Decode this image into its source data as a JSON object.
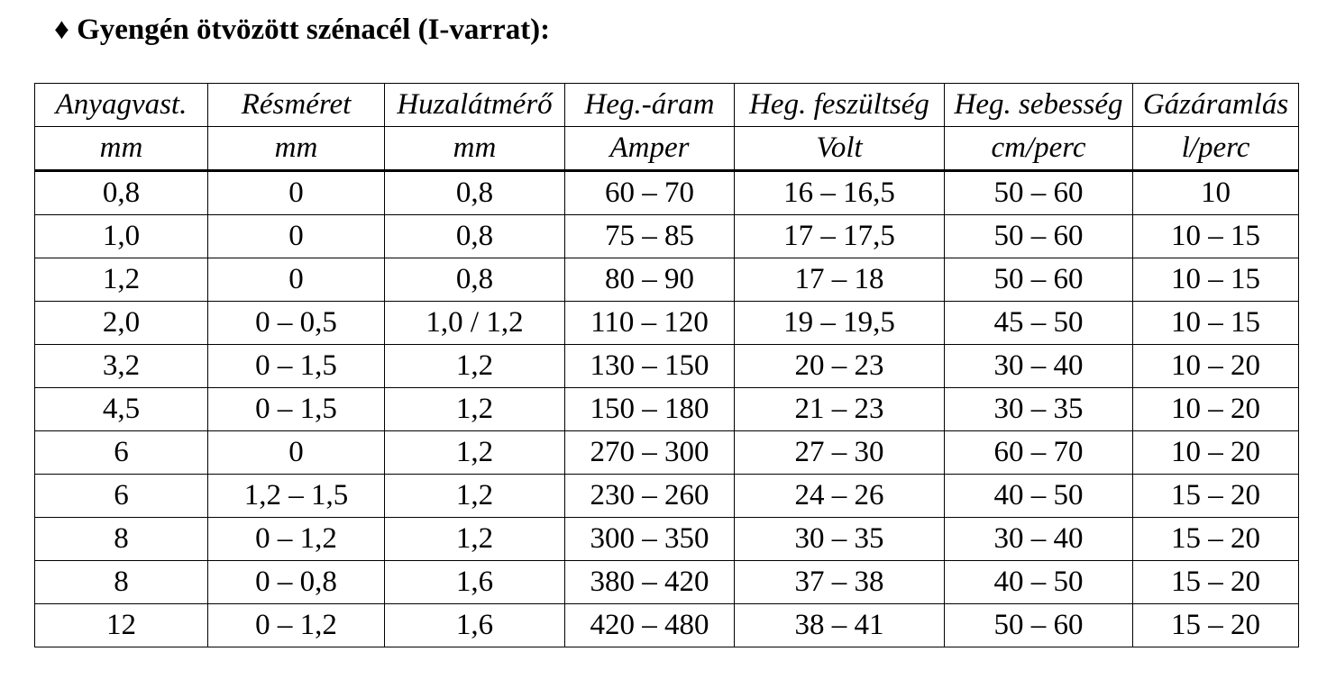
{
  "title": "♦ Gyengén ötvözött szénacél (I-varrat):",
  "table": {
    "headers": [
      "Anyagvast.",
      "Résméret",
      "Huzalátmérő",
      "Heg.-áram",
      "Heg. feszültség",
      "Heg. sebesség",
      "Gázáramlás"
    ],
    "units": [
      "mm",
      "mm",
      "mm",
      "Amper",
      "Volt",
      "cm/perc",
      "l/perc"
    ],
    "rows": [
      [
        "0,8",
        "0",
        "0,8",
        "60 – 70",
        "16 – 16,5",
        "50 – 60",
        "10"
      ],
      [
        "1,0",
        "0",
        "0,8",
        "75 – 85",
        "17 – 17,5",
        "50 – 60",
        "10 – 15"
      ],
      [
        "1,2",
        "0",
        "0,8",
        "80 – 90",
        "17 – 18",
        "50 – 60",
        "10 – 15"
      ],
      [
        "2,0",
        "0 – 0,5",
        "1,0 / 1,2",
        "110 – 120",
        "19 – 19,5",
        "45 – 50",
        "10 – 15"
      ],
      [
        "3,2",
        "0 – 1,5",
        "1,2",
        "130 – 150",
        "20 – 23",
        "30 – 40",
        "10 – 20"
      ],
      [
        "4,5",
        "0 – 1,5",
        "1,2",
        "150 – 180",
        "21 – 23",
        "30 – 35",
        "10 – 20"
      ],
      [
        "6",
        "0",
        "1,2",
        "270 – 300",
        "27 – 30",
        "60 – 70",
        "10 – 20"
      ],
      [
        "6",
        "1,2 – 1,5",
        "1,2",
        "230 – 260",
        "24 – 26",
        "40 – 50",
        "15 – 20"
      ],
      [
        "8",
        "0 – 1,2",
        "1,2",
        "300 – 350",
        "30 – 35",
        "30 – 40",
        "15 – 20"
      ],
      [
        "8",
        "0 – 0,8",
        "1,6",
        "380 – 420",
        "37 – 38",
        "40 – 50",
        "15 – 20"
      ],
      [
        "12",
        "0 – 1,2",
        "1,6",
        "420 – 480",
        "38 – 41",
        "50 – 60",
        "15 – 20"
      ]
    ]
  }
}
